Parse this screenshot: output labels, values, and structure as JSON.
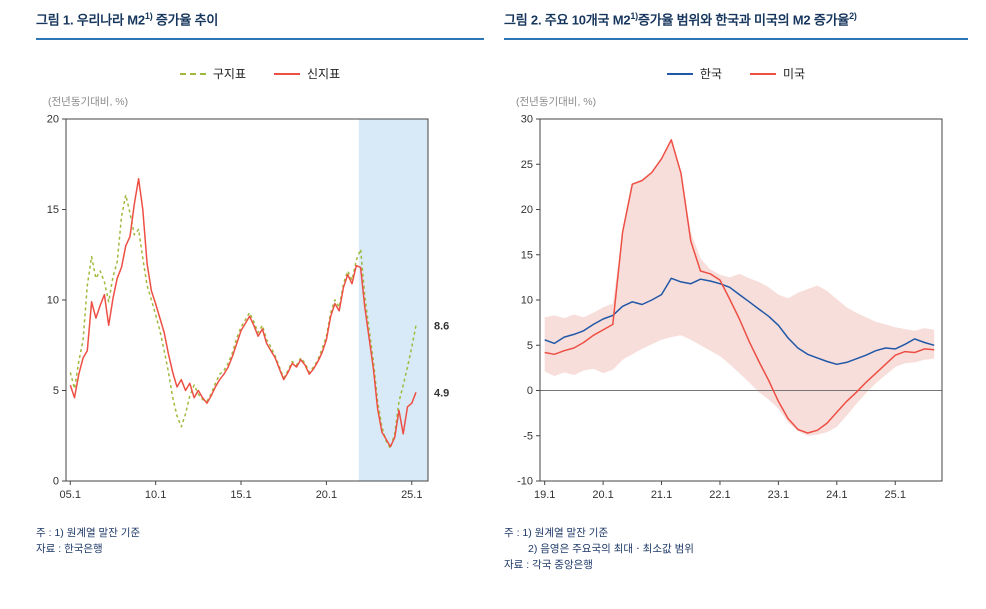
{
  "colors": {
    "title_text": "#17365d",
    "title_underline": "#2e75b6",
    "note_text": "#1f3a68",
    "axis": "#444444",
    "old_index_green": "#9fb93c",
    "new_index_red": "#ee4f44",
    "korea_blue": "#2057a7",
    "us_red": "#ee4f44",
    "band_pink": "#f7dedb",
    "highlight_blue": "#d8eaf8"
  },
  "figures": {
    "fig1": {
      "title_p1": "그림 1. 우리나라 M2",
      "title_sup1": "1)",
      "title_p2": " 증가율 추이",
      "unit_label": "(전년동기대비, %)",
      "notes": [
        {
          "text": "주 : 1) 원계열 말잔 기준",
          "indent": false
        },
        {
          "text": "자료 : 한국은행",
          "indent": false
        }
      ]
    },
    "fig2": {
      "title_p1": "그림 2. 주요 10개국 M2",
      "title_sup1": "1)",
      "title_p2": "증가율 범위와 한국과 미국의 M2 증가율",
      "title_sup2": "2)",
      "unit_label": "(전년동기대비, %)",
      "notes": [
        {
          "text": "주 : 1) 원계열 말잔 기준",
          "indent": false
        },
        {
          "text": "2) 음영은 주요국의 최대ㆍ최소값 범위",
          "indent": true
        },
        {
          "text": "자료 : 각국 중앙은행",
          "indent": false
        }
      ]
    }
  },
  "chart_data": [
    {
      "type": "line",
      "title": "그림 1. 우리나라 M2 1) 증가율 추이",
      "ylabel": "(전년동기대비, %)",
      "legend_position": "top",
      "grid": false,
      "xlim": [
        2004.75,
        2025.95
      ],
      "ylim": [
        0,
        20
      ],
      "yticks": [
        0,
        5,
        10,
        15,
        20
      ],
      "xticks": [
        2005,
        2010,
        2015,
        2020,
        2025
      ],
      "xtick_labels": [
        "05.1",
        "10.1",
        "15.1",
        "20.1",
        "25.1"
      ],
      "margins": {
        "l": 30,
        "r": 40,
        "t": 8,
        "b": 30
      },
      "shaded_region": {
        "from": 2021.9,
        "to": 2025.95,
        "color": "#d8eaf8"
      },
      "series": [
        {
          "key": "old-index",
          "name": "구지표",
          "color": "#9fb93c",
          "dash": "3 3",
          "x0": 2005.0,
          "dx": 0.25,
          "y": [
            6.0,
            5.1,
            6.6,
            7.8,
            10.8,
            12.4,
            11.2,
            11.6,
            11.0,
            9.9,
            11.3,
            12.1,
            14.6,
            15.8,
            14.8,
            13.6,
            13.9,
            12.3,
            10.8,
            10.0,
            9.2,
            8.3,
            7.2,
            6.0,
            4.6,
            3.6,
            3.0,
            3.7,
            4.7,
            5.3,
            4.8,
            4.5,
            4.4,
            4.8,
            5.4,
            5.9,
            6.1,
            6.5,
            7.1,
            7.9,
            8.5,
            8.9,
            9.3,
            8.8,
            8.2,
            8.6,
            7.8,
            7.4,
            6.9,
            6.3,
            5.7,
            6.1,
            6.6,
            6.4,
            6.8,
            6.5,
            6.0,
            6.3,
            6.7,
            7.3,
            8.0,
            9.3,
            10.0,
            9.6,
            10.9,
            11.6,
            11.1,
            12.2,
            12.8,
            10.2,
            8.4,
            6.6,
            4.4,
            3.0,
            2.2,
            1.8,
            2.6,
            4.4,
            5.3,
            6.3,
            7.4,
            8.6
          ]
        },
        {
          "key": "new-index",
          "name": "신지표",
          "color": "#ee4f44",
          "x0": 2005.0,
          "dx": 0.25,
          "y": [
            5.3,
            4.6,
            5.9,
            6.8,
            7.2,
            9.9,
            9.0,
            9.7,
            10.3,
            8.6,
            10.1,
            11.2,
            11.8,
            13.0,
            13.5,
            15.3,
            16.7,
            15.0,
            12.0,
            10.5,
            9.8,
            9.0,
            8.2,
            7.0,
            6.0,
            5.2,
            5.6,
            5.0,
            5.4,
            4.6,
            5.0,
            4.6,
            4.3,
            4.7,
            5.2,
            5.6,
            5.9,
            6.3,
            6.9,
            7.6,
            8.3,
            8.7,
            9.1,
            8.6,
            8.0,
            8.4,
            7.6,
            7.2,
            6.8,
            6.2,
            5.6,
            6.0,
            6.5,
            6.3,
            6.7,
            6.4,
            5.9,
            6.2,
            6.6,
            7.1,
            7.8,
            9.1,
            9.8,
            9.4,
            10.7,
            11.4,
            10.9,
            11.9,
            11.8,
            9.6,
            7.9,
            6.2,
            4.0,
            2.7,
            2.3,
            1.9,
            2.4,
            3.9,
            2.6,
            4.1,
            4.3,
            4.9
          ]
        }
      ],
      "end_labels": [
        {
          "text": "8.6",
          "color": "#6fa52f",
          "y": 8.6
        },
        {
          "text": "4.9",
          "color": "#ee4f44",
          "y": 4.9
        }
      ]
    },
    {
      "type": "line",
      "title": "그림 2. 주요 10개국 M2 1) 증가율 범위와 한국과 미국의 M2 증가율 2)",
      "ylabel": "(전년동기대비, %)",
      "legend_position": "top",
      "grid": false,
      "xlim": [
        2018.92,
        2025.8
      ],
      "ylim": [
        -10,
        30
      ],
      "yticks": [
        -10,
        -5,
        0,
        5,
        10,
        15,
        20,
        25,
        30
      ],
      "xticks": [
        2019,
        2020,
        2021,
        2022,
        2023,
        2024,
        2025
      ],
      "xtick_labels": [
        "19.1",
        "20.1",
        "21.1",
        "22.1",
        "23.1",
        "24.1",
        "25.1"
      ],
      "margins": {
        "l": 36,
        "r": 14,
        "t": 8,
        "b": 30
      },
      "zero_line": true,
      "band": {
        "name": "주요국 최대ㆍ최소값 범위",
        "color": "#f7dedb",
        "x0": 2019.0,
        "dx": 0.1666667,
        "upper": [
          8.1,
          8.3,
          8.0,
          8.4,
          8.1,
          8.6,
          9.2,
          9.6,
          17.5,
          22.8,
          23.2,
          24.1,
          25.6,
          27.7,
          24.0,
          17.5,
          14.6,
          13.4,
          12.8,
          12.5,
          12.9,
          12.4,
          12.0,
          11.4,
          10.6,
          10.2,
          10.8,
          11.2,
          11.6,
          11.0,
          10.1,
          9.2,
          8.6,
          8.1,
          7.6,
          7.3,
          7.0,
          6.8,
          6.6,
          6.9,
          6.7
        ],
        "lower": [
          2.1,
          1.6,
          2.0,
          1.7,
          2.2,
          2.4,
          1.9,
          2.3,
          3.4,
          4.0,
          4.6,
          5.1,
          5.6,
          5.9,
          6.1,
          5.6,
          5.0,
          4.4,
          3.8,
          2.9,
          1.9,
          0.9,
          -0.2,
          -1.0,
          -2.0,
          -3.5,
          -4.5,
          -5.0,
          -4.9,
          -4.6,
          -4.0,
          -2.8,
          -1.5,
          -0.3,
          0.8,
          1.7,
          2.6,
          3.0,
          3.1,
          3.4,
          3.5
        ]
      },
      "series": [
        {
          "key": "korea",
          "name": "한국",
          "color": "#2057a7",
          "x0": 2019.0,
          "dx": 0.1666667,
          "y": [
            5.6,
            5.2,
            5.9,
            6.2,
            6.6,
            7.3,
            7.9,
            8.3,
            9.3,
            9.8,
            9.5,
            10.0,
            10.6,
            12.4,
            12.0,
            11.8,
            12.3,
            12.1,
            11.8,
            11.4,
            10.6,
            9.8,
            9.0,
            8.2,
            7.2,
            5.8,
            4.7,
            4.0,
            3.6,
            3.2,
            2.9,
            3.1,
            3.5,
            3.9,
            4.4,
            4.7,
            4.6,
            5.1,
            5.7,
            5.3,
            5.0
          ]
        },
        {
          "key": "us",
          "name": "미국",
          "color": "#ee4f44",
          "x0": 2019.0,
          "dx": 0.1666667,
          "y": [
            4.2,
            4.0,
            4.4,
            4.7,
            5.3,
            6.1,
            6.7,
            7.3,
            17.5,
            22.8,
            23.2,
            24.1,
            25.6,
            27.7,
            24.0,
            16.5,
            13.2,
            12.9,
            12.2,
            10.1,
            7.9,
            5.4,
            3.2,
            1.1,
            -1.2,
            -3.1,
            -4.3,
            -4.7,
            -4.4,
            -3.6,
            -2.4,
            -1.2,
            -0.2,
            0.9,
            1.9,
            2.9,
            3.9,
            4.3,
            4.2,
            4.6,
            4.5
          ]
        }
      ]
    }
  ]
}
